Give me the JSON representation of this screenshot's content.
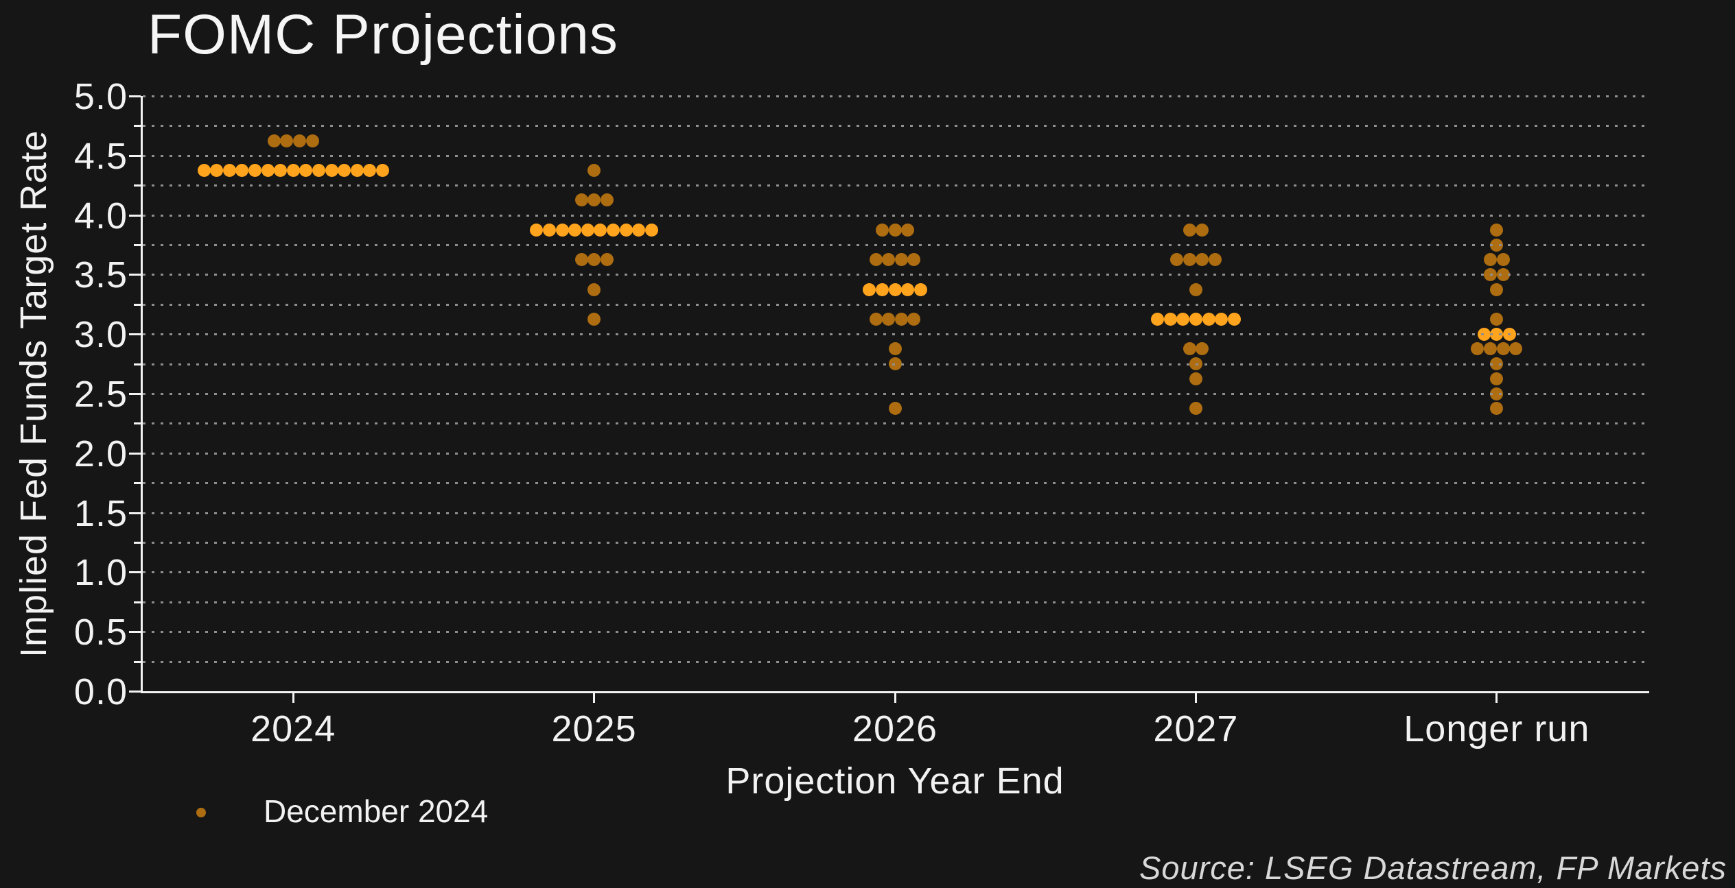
{
  "chart_data": {
    "type": "scatter",
    "variant": "fomc-dot-plot",
    "title": "FOMC Projections",
    "xlabel": "Projection Year End",
    "ylabel": "Implied Fed Funds Target Rate",
    "categories": [
      "2024",
      "2025",
      "2026",
      "2027",
      "Longer run"
    ],
    "ylim": [
      0.0,
      5.0
    ],
    "ytick_step": 0.5,
    "ytick_labels": [
      "0.0",
      "0.5",
      "1.0",
      "1.5",
      "2.0",
      "2.5",
      "3.0",
      "3.5",
      "4.0",
      "4.5",
      "5.0"
    ],
    "grid_step": 0.25,
    "grid": true,
    "legend_position": "bottom-left",
    "legend_entries": [
      {
        "label": "December 2024",
        "color": "#ad6d10"
      }
    ],
    "source": "Source: LSEG Datastream, FP Markets",
    "colors": {
      "dot": "#ad6d10",
      "median_dot": "#ffa41c",
      "axis": "#f2f2f2",
      "text": "#f2f2f2",
      "grid": "#8f8f8f",
      "background": "#161616",
      "source_text": "#d8d8d8"
    },
    "series": [
      {
        "name": "December 2024",
        "unit": "percent",
        "distributions": [
          {
            "category": "2024",
            "rows": [
              {
                "rate": 4.625,
                "count": 4
              },
              {
                "rate": 4.375,
                "count": 15,
                "median": true
              }
            ]
          },
          {
            "category": "2025",
            "rows": [
              {
                "rate": 4.375,
                "count": 1
              },
              {
                "rate": 4.125,
                "count": 3
              },
              {
                "rate": 3.875,
                "count": 10,
                "median": true
              },
              {
                "rate": 3.625,
                "count": 3
              },
              {
                "rate": 3.375,
                "count": 1
              },
              {
                "rate": 3.125,
                "count": 1
              }
            ]
          },
          {
            "category": "2026",
            "rows": [
              {
                "rate": 3.875,
                "count": 3
              },
              {
                "rate": 3.625,
                "count": 4
              },
              {
                "rate": 3.375,
                "count": 5,
                "median": true
              },
              {
                "rate": 3.125,
                "count": 4
              },
              {
                "rate": 2.875,
                "count": 1
              },
              {
                "rate": 2.75,
                "count": 1
              },
              {
                "rate": 2.375,
                "count": 1
              }
            ]
          },
          {
            "category": "2027",
            "rows": [
              {
                "rate": 3.875,
                "count": 2
              },
              {
                "rate": 3.625,
                "count": 4
              },
              {
                "rate": 3.375,
                "count": 1
              },
              {
                "rate": 3.125,
                "count": 7,
                "median": true
              },
              {
                "rate": 2.875,
                "count": 2
              },
              {
                "rate": 2.75,
                "count": 1
              },
              {
                "rate": 2.625,
                "count": 1
              },
              {
                "rate": 2.375,
                "count": 1
              }
            ]
          },
          {
            "category": "Longer run",
            "rows": [
              {
                "rate": 3.875,
                "count": 1
              },
              {
                "rate": 3.75,
                "count": 1
              },
              {
                "rate": 3.625,
                "count": 2
              },
              {
                "rate": 3.5,
                "count": 2
              },
              {
                "rate": 3.375,
                "count": 1
              },
              {
                "rate": 3.125,
                "count": 1
              },
              {
                "rate": 3.0,
                "count": 3,
                "median": true
              },
              {
                "rate": 2.875,
                "count": 4
              },
              {
                "rate": 2.75,
                "count": 1
              },
              {
                "rate": 2.625,
                "count": 1
              },
              {
                "rate": 2.5,
                "count": 1
              },
              {
                "rate": 2.375,
                "count": 1
              }
            ]
          }
        ]
      }
    ]
  }
}
